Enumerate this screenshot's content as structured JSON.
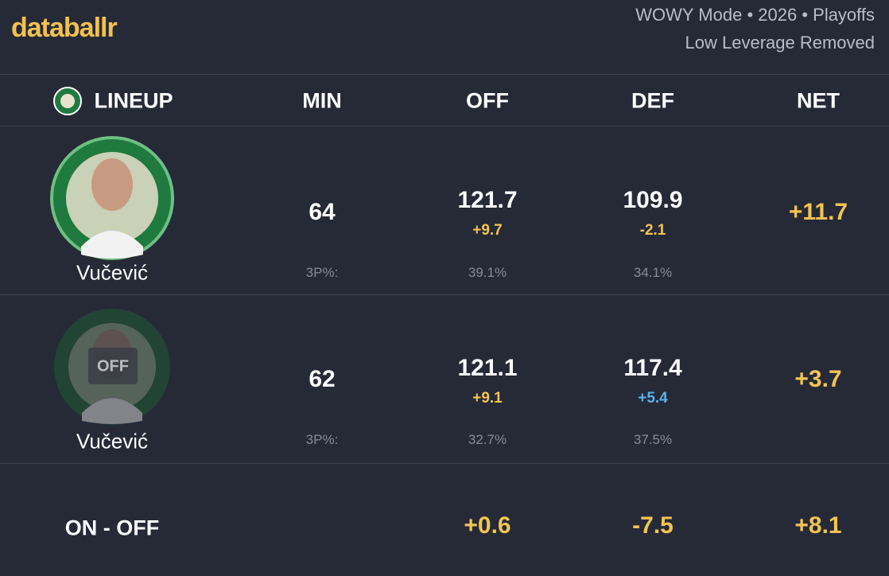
{
  "header": {
    "brand": "databallr",
    "mode": "WOWY Mode • 2026 • Playoffs",
    "filter": "Low Leverage Removed"
  },
  "table": {
    "columns": [
      "LINEUP",
      "MIN",
      "OFF",
      "DEF",
      "NET"
    ],
    "rows": [
      {
        "player": "Vučević",
        "min": "64",
        "off": "121.7",
        "off_diff": "+9.7",
        "def": "109.9",
        "def_diff": "-2.1",
        "net": "+11.7",
        "shooting_label": "3P%:",
        "off_3p": "39.1%",
        "def_3p": "34.1%"
      },
      {
        "status": "OFF",
        "player": "Vučević",
        "min": "62",
        "off": "121.1",
        "off_diff": "+9.1",
        "def": "117.4",
        "def_diff": "+5.4",
        "net": "+3.7",
        "shooting_label": "3P%:",
        "off_3p": "32.7%",
        "def_3p": "37.5%"
      }
    ],
    "summary": {
      "label": "ON - OFF",
      "off": "+0.6",
      "def": "-7.5",
      "net": "+8.1"
    }
  }
}
